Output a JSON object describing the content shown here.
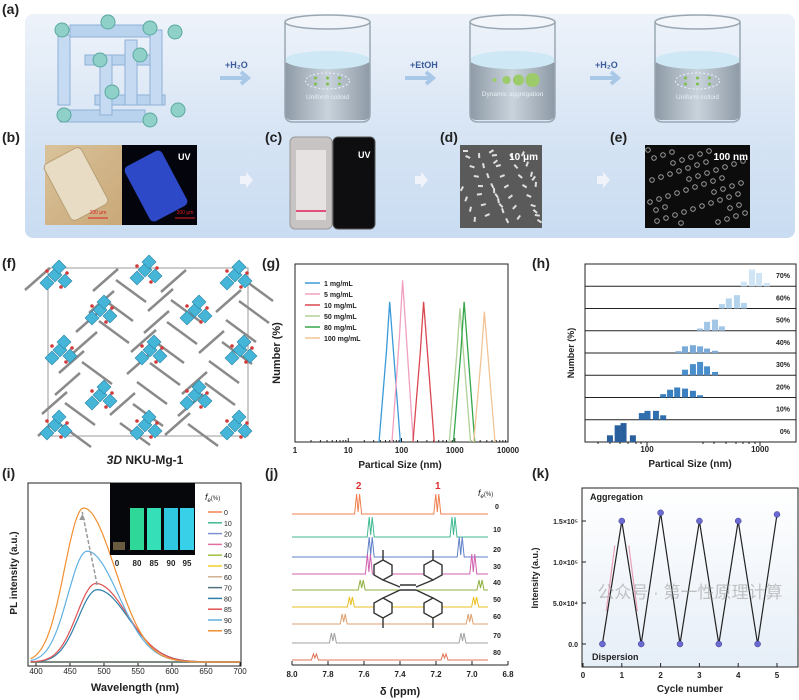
{
  "figure": {
    "panel_labels": {
      "a": "(a)",
      "b": "(b)",
      "c": "(c)",
      "d": "(d)",
      "e": "(e)",
      "f": "(f)",
      "g": "(g)",
      "h": "(h)",
      "i": "(i)",
      "j": "(j)",
      "k": "(k)"
    },
    "a": {
      "steps": [
        "+H₂O",
        "+EtOH",
        "+H₂O"
      ],
      "beaker_labels": [
        "Uniform colloid",
        "Dynamic aggregation",
        "Uniform colloid"
      ]
    },
    "b": {
      "uv": "UV",
      "scale_bright": "200 μm",
      "scale_uv": "200 μm"
    },
    "c": {
      "uv": "UV"
    },
    "d": {
      "scale": "10 μm"
    },
    "e": {
      "scale": "100 nm"
    },
    "f": {
      "caption_italic": "3D",
      "caption": " NKU-Mg-1"
    },
    "i_inset": {
      "labels": [
        "0",
        "80",
        "85",
        "90",
        "95"
      ]
    },
    "watermark": "公众号 · 第一性原理计算"
  },
  "colors": {
    "band_bg": "#dbe7f5",
    "poly": "#45b5d8",
    "axis": "#222222",
    "peak_label": "#d93030"
  },
  "chart_data": [
    {
      "panel": "g",
      "type": "line",
      "xlabel": "Partical Size (nm)",
      "ylabel": "Number (%)",
      "xscale": "log",
      "xlim": [
        1,
        10000
      ],
      "xticks": [
        "1",
        "10",
        "100",
        "1000",
        "10000"
      ],
      "legend_position": "top-left",
      "series": [
        {
          "name": "1 mg/mL",
          "color": "#3a9ad9",
          "peak": 60,
          "height": 0.85
        },
        {
          "name": "5 mg/mL",
          "color": "#f0a0c0",
          "peak": 105,
          "height": 0.98
        },
        {
          "name": "10 mg/mL",
          "color": "#d9484f",
          "peak": 260,
          "height": 0.85
        },
        {
          "name": "50 mg/mL",
          "color": "#b0d098",
          "peak": 1250,
          "height": 0.81
        },
        {
          "name": "80 mg/mL",
          "color": "#34a64a",
          "peak": 1500,
          "height": 0.85
        },
        {
          "name": "100 mg/mL",
          "color": "#f2c496",
          "peak": 3600,
          "height": 0.79
        }
      ]
    },
    {
      "panel": "h",
      "type": "bar",
      "xlabel": "Partical Size (nm)",
      "ylabel": "Number (%)",
      "xscale": "log",
      "xticks": [
        "100",
        "1000"
      ],
      "rows": [
        {
          "label": "0%",
          "color": "#2a5f9e",
          "bins": [
            [
              47,
              0.3
            ],
            [
              55,
              0.75
            ],
            [
              62,
              0.85
            ],
            [
              75,
              0.3
            ]
          ]
        },
        {
          "label": "10%",
          "color": "#2f6fae",
          "bins": [
            [
              90,
              0.3
            ],
            [
              101,
              0.4
            ],
            [
              120,
              0.4
            ],
            [
              139,
              0.2
            ]
          ]
        },
        {
          "label": "20%",
          "color": "#3a80c0",
          "bins": [
            [
              139,
              0.15
            ],
            [
              160,
              0.35
            ],
            [
              185,
              0.45
            ],
            [
              217,
              0.4
            ],
            [
              255,
              0.3
            ],
            [
              295,
              0.1
            ]
          ]
        },
        {
          "label": "30%",
          "color": "#4a8ecb",
          "bins": [
            [
              217,
              0.25
            ],
            [
              255,
              0.5
            ],
            [
              295,
              0.6
            ],
            [
              340,
              0.4
            ],
            [
              400,
              0.15
            ]
          ]
        },
        {
          "label": "40%",
          "color": "#7aaad8",
          "bins": [
            [
              190,
              0.08
            ],
            [
              217,
              0.3
            ],
            [
              255,
              0.35
            ],
            [
              295,
              0.3
            ],
            [
              340,
              0.2
            ],
            [
              400,
              0.1
            ]
          ]
        },
        {
          "label": "50%",
          "color": "#a2c6e6",
          "bins": [
            [
              295,
              0.1
            ],
            [
              340,
              0.4
            ],
            [
              400,
              0.5
            ],
            [
              460,
              0.2
            ]
          ]
        },
        {
          "label": "60%",
          "color": "#b4d4ee",
          "bins": [
            [
              460,
              0.2
            ],
            [
              530,
              0.45
            ],
            [
              625,
              0.6
            ],
            [
              720,
              0.25
            ]
          ]
        },
        {
          "label": "70%",
          "color": "#cfe4f4",
          "bins": [
            [
              720,
              0.2
            ],
            [
              850,
              0.75
            ],
            [
              980,
              0.6
            ],
            [
              1150,
              0.15
            ]
          ]
        }
      ]
    },
    {
      "panel": "i",
      "type": "line",
      "xlabel": "Wavelength (nm)",
      "ylabel": "PL intensity (a.u.)",
      "xlim": [
        385,
        700
      ],
      "xticks": [
        "400",
        "450",
        "500",
        "550",
        "600",
        "650",
        "700"
      ],
      "legend_title": "f",
      "legend_sub": "e",
      "legend_unit": "(%)",
      "legend_position": "right",
      "series": [
        {
          "name": "0",
          "color": "#f08050",
          "peak": 470,
          "height": 0
        },
        {
          "name": "10",
          "color": "#40b890",
          "peak": 470,
          "height": 0
        },
        {
          "name": "20",
          "color": "#8090d0",
          "peak": 470,
          "height": 0
        },
        {
          "name": "30",
          "color": "#e070a0",
          "peak": 470,
          "height": 0
        },
        {
          "name": "40",
          "color": "#a0c040",
          "peak": 470,
          "height": 0
        },
        {
          "name": "50",
          "color": "#f0d030",
          "peak": 470,
          "height": 0
        },
        {
          "name": "60",
          "color": "#d0b090",
          "peak": 470,
          "height": 0
        },
        {
          "name": "70",
          "color": "#507080",
          "peak": 470,
          "height": 0
        },
        {
          "name": "80",
          "color": "#3080a8",
          "peak": 490,
          "height": 0.47
        },
        {
          "name": "85",
          "color": "#e05050",
          "peak": 488,
          "height": 0.51
        },
        {
          "name": "90",
          "color": "#60b0e0",
          "peak": 475,
          "height": 0.72
        },
        {
          "name": "95",
          "color": "#f09030",
          "peak": 470,
          "height": 1.0
        }
      ]
    },
    {
      "panel": "j",
      "type": "line",
      "xlabel": "δ (ppm)",
      "xlim": [
        8.0,
        6.8
      ],
      "xticks": [
        "8.0",
        "7.8",
        "7.6",
        "7.4",
        "7.2",
        "7.0",
        "6.8"
      ],
      "peak_labels": [
        "2",
        "1"
      ],
      "legend_title": "f",
      "legend_sub": "e",
      "legend_unit": "(%)",
      "series": [
        {
          "name": "0",
          "color": "#f08050",
          "peaks": [
            7.63,
            7.19
          ]
        },
        {
          "name": "10",
          "color": "#40b890",
          "peaks": [
            7.56,
            7.1
          ]
        },
        {
          "name": "20",
          "color": "#6080c8",
          "peaks": [
            7.56,
            7.06
          ]
        },
        {
          "name": "30",
          "color": "#d060b0",
          "peaks": [
            7.57,
            6.99
          ]
        },
        {
          "name": "40",
          "color": "#90b040",
          "peaks": [
            7.61,
            6.95
          ]
        },
        {
          "name": "50",
          "color": "#e8c020",
          "peaks": [
            7.67,
            6.98
          ]
        },
        {
          "name": "60",
          "color": "#e0a070",
          "peaks": [
            7.71,
            7.01
          ]
        },
        {
          "name": "70",
          "color": "#a0a0a0",
          "peaks": [
            7.77,
            7.05
          ]
        },
        {
          "name": "80",
          "color": "#e07050",
          "peaks": [
            7.87,
            7.15
          ]
        }
      ]
    },
    {
      "panel": "k",
      "type": "line",
      "xlabel": "Cycle number",
      "ylabel": "Intensity (a.u.)",
      "xlim": [
        0,
        5
      ],
      "ylim": [
        0,
        180000.0
      ],
      "xticks": [
        "0",
        "1",
        "2",
        "3",
        "4",
        "5"
      ],
      "yticks": [
        {
          "value": 0,
          "label": "0.0"
        },
        {
          "value": 50000,
          "label": "5.0×10⁴"
        },
        {
          "value": 100000,
          "label": "1.0×10⁵"
        },
        {
          "value": 150000,
          "label": "1.5×10⁵"
        }
      ],
      "annotations": [
        "Aggregation",
        "Dispersion"
      ],
      "x": [
        0.5,
        1,
        1.5,
        2,
        2.5,
        3,
        3.5,
        4,
        4.5,
        5
      ],
      "y": [
        0,
        150000,
        0,
        160000,
        0,
        150000,
        0,
        150000,
        0,
        158000
      ]
    }
  ]
}
